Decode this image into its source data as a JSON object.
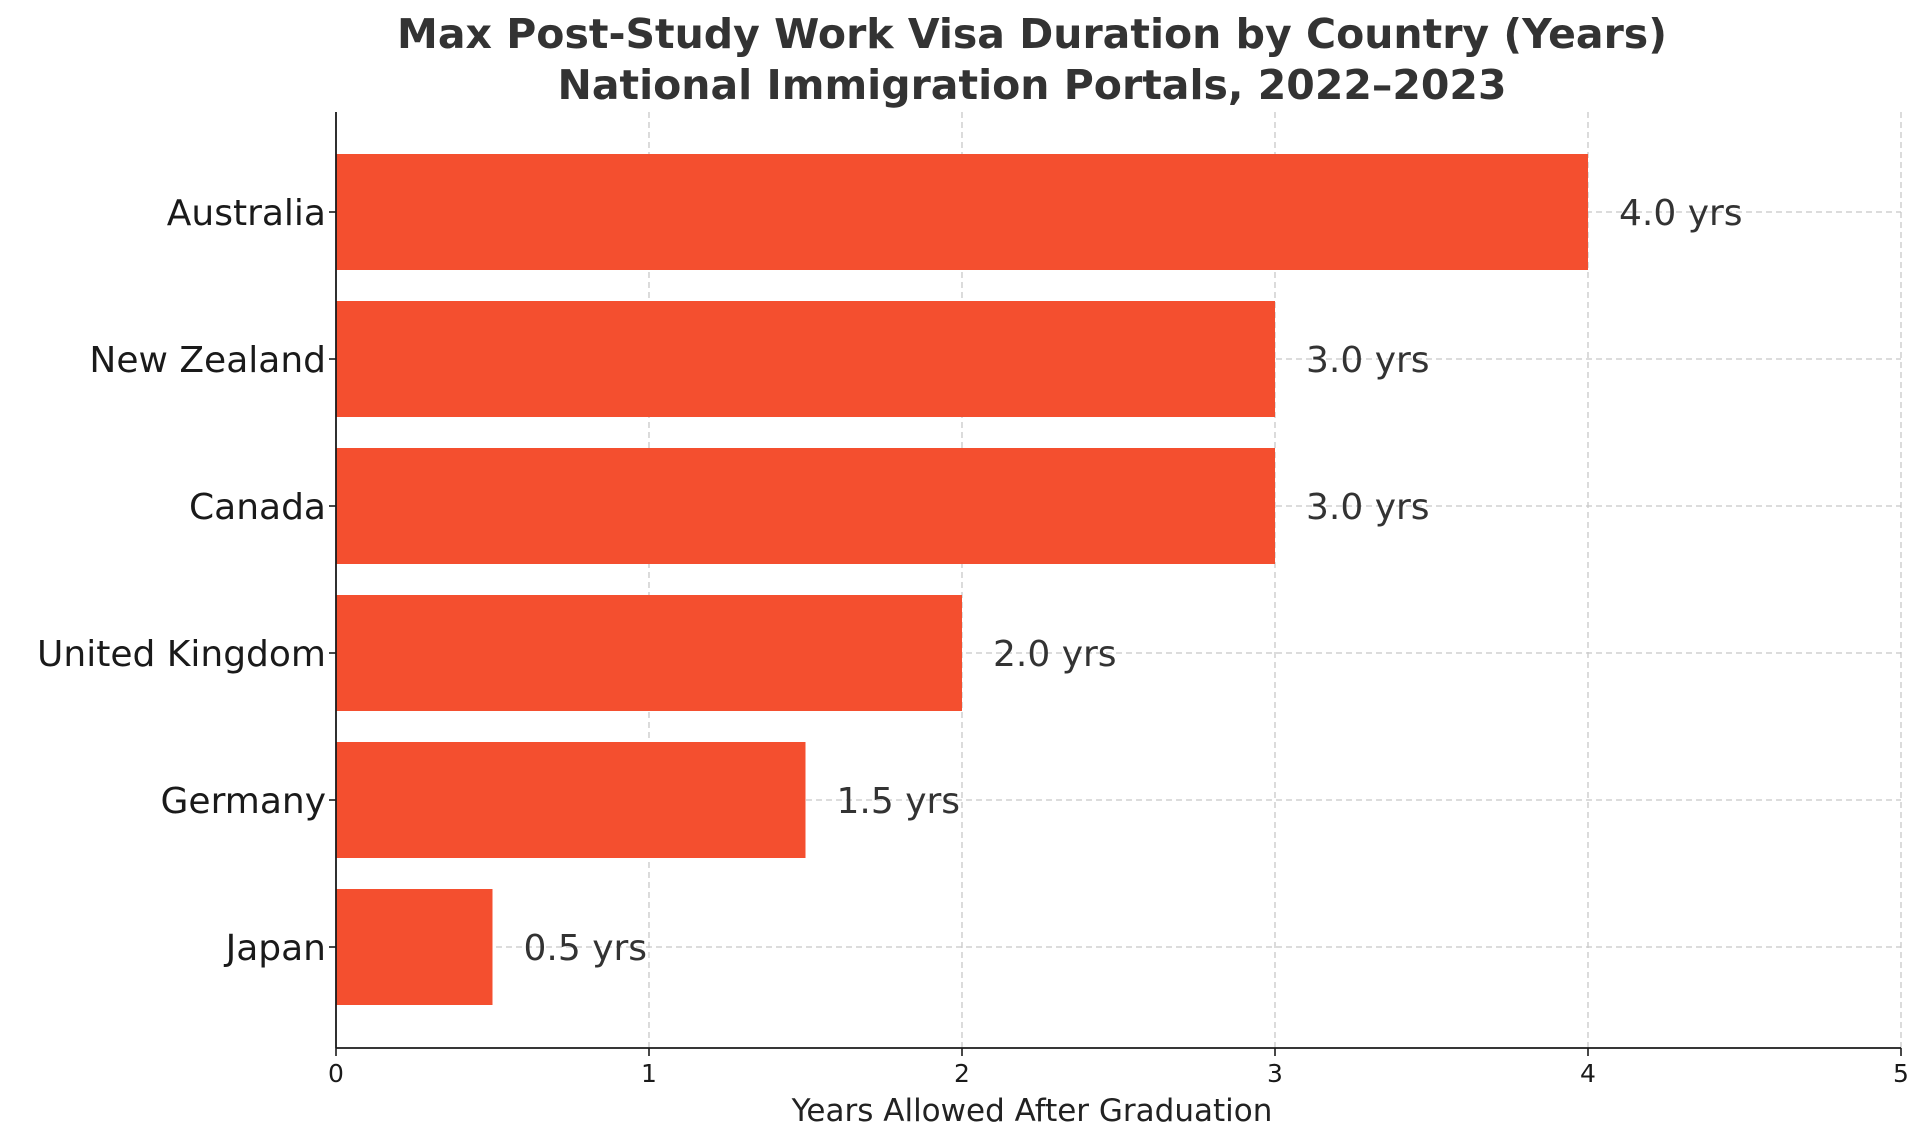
{
  "chart_data": {
    "type": "bar",
    "orientation": "horizontal",
    "title": "Max Post-Study Work Visa Duration by Country (Years)",
    "subtitle": "National Immigration Portals, 2022–2023",
    "xlabel": "Years Allowed After Graduation",
    "ylabel": "",
    "categories": [
      "Australia",
      "New Zealand",
      "Canada",
      "United Kingdom",
      "Germany",
      "Japan"
    ],
    "values": [
      4.0,
      3.0,
      3.0,
      2.0,
      1.5,
      0.5
    ],
    "value_labels": [
      "4.0 yrs",
      "3.0 yrs",
      "3.0 yrs",
      "2.0 yrs",
      "1.5 yrs",
      "0.5 yrs"
    ],
    "xlim": [
      0,
      5
    ],
    "xticks": [
      0,
      1,
      2,
      3,
      4,
      5
    ],
    "xtick_labels": [
      "0",
      "1",
      "2",
      "3",
      "4",
      "5"
    ],
    "grid": true,
    "bar_color": "#f44f2f",
    "legend": "none"
  }
}
